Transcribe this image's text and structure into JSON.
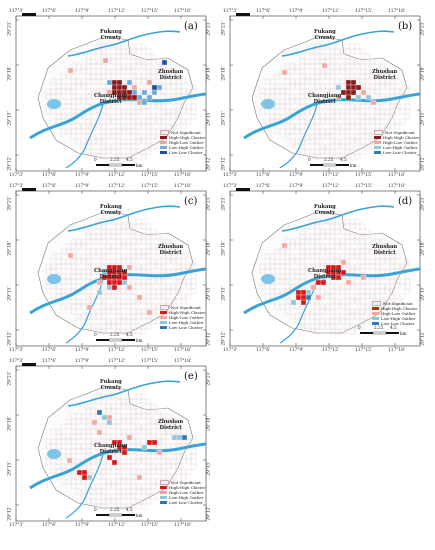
{
  "panels": [
    {
      "label": "(a)",
      "labels": [
        "Fukang\nCounty",
        "Zhushan\nDistrict",
        "Changjiang\nDistrict"
      ]
    },
    {
      "label": "(b)",
      "labels": [
        "Fukang\nCounty",
        "Zhushan\nDistrict",
        "Changjiang\nDistrict"
      ]
    },
    {
      "label": "(c)",
      "labels": [
        "Fukang\nCounty",
        "Zhushan\nDistrict",
        "Changjiang\nDistrict"
      ]
    },
    {
      "label": "(d)",
      "labels": [
        "Fukang\nCounty",
        "Zhushan\nDistrict",
        "Changjiang\nDistrict"
      ]
    },
    {
      "label": "(e)",
      "labels": [
        "Fukang\nCounty",
        "Zhushan\nDistrict",
        "Changjiang\nDistrict"
      ]
    }
  ],
  "ticks_lon": [
    "117°3'",
    "117°6'",
    "117°9'",
    "117°12'",
    "117°15'",
    "117°18'"
  ],
  "ticks_lat": [
    "29°21'",
    "29°18'",
    "29°15'",
    "29°12'"
  ],
  "legend": [
    {
      "label": "Not Significant",
      "color": "#f7eef3"
    },
    {
      "label": "High-High Cluster",
      "color": "#d7191c"
    },
    {
      "label": "High-Low Outlier",
      "color": "#f4a6a0"
    },
    {
      "label": "Low-High Outlier",
      "color": "#92c5de"
    },
    {
      "label": "Low-Low Cluster",
      "color": "#2c7bb6"
    }
  ],
  "legend_a": [
    {
      "label": "Not Significant",
      "color": "#f7eef3"
    },
    {
      "label": "High-High Cluster",
      "color": "#8b1a1a"
    },
    {
      "label": "High-Low Outlier",
      "color": "#e7a9a0"
    },
    {
      "label": "Low-High Outlier",
      "color": "#6fa8dc"
    },
    {
      "label": "Low-Low Cluster",
      "color": "#1f4fa3"
    }
  ],
  "scale": {
    "ticks": [
      "0",
      "2.25",
      "4.5"
    ],
    "unit": "km"
  }
}
